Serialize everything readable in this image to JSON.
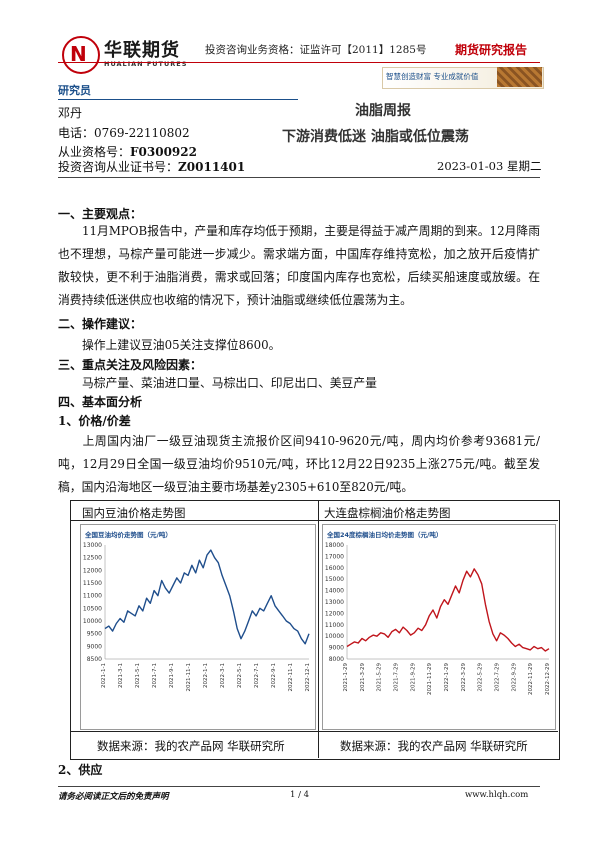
{
  "header": {
    "logo_cn": "华联期货",
    "logo_en": "HUALIAN FUTURES",
    "license": "投资咨询业务资格：证监许可【2011】1285号",
    "report_type": "期货研究报告",
    "banner": "智慧创造财富 专业成就价值"
  },
  "researcher": {
    "role": "研究员",
    "name": "邓丹",
    "phone": "电话：0769-22110802",
    "qual_label": "从业资格号：",
    "qual_no": "F0300922",
    "invest_label": "投资咨询从业证书号：",
    "invest_no": "Z0011401"
  },
  "report": {
    "title": "油脂周报",
    "subtitle": "下游消费低迷 油脂或低位震荡",
    "date": "2023-01-03 星期二"
  },
  "sections": {
    "s1_heading": "一、主要观点：",
    "s1_body": "11月MPOB报告中，产量和库存均低于预期，主要是得益于减产周期的到来。12月降雨也不理想，马棕产量可能进一步减少。需求端方面，中国库存维持宽松，加之放开后疫情扩散较快，更不利于油脂消费，需求或回落；印度国内库存也宽松，后续买船速度或放缓。在消费持续低迷供应也收缩的情况下，预计油脂或继续低位震荡为主。",
    "s2_heading": "二、操作建议：",
    "s2_body": "操作上建议豆油05关注支撑位8600。",
    "s3_heading": "三、重点关注及风险因素：",
    "s3_body": "马棕产量、菜油进口量、马棕出口、印尼出口、美豆产量",
    "s4_heading": "四、基本面分析",
    "s4_sub1": "1、价格/价差",
    "s4_body": "上周国内油厂一级豆油现货主流报价区间9410-9620元/吨，周内均价参考93681元/吨，12月29日全国一级豆油均价9510元/吨，环比12月22日9235上涨275元/吨。截至发稿，国内沿海地区一级豆油主要市场基差y2305+610至820元/吨。",
    "s4_sub2": "2、供应"
  },
  "figures": {
    "left_caption": "国内豆油价格走势图",
    "right_caption": "大连盘棕榈油价格走势图",
    "left_source": "数据来源：我的农产品网  华联研究所",
    "right_source": "数据来源：我的农产品网  华联研究所"
  },
  "chart_data": [
    {
      "type": "line",
      "title": "全国豆油均价走势图（元/吨）",
      "color": "#1f4e8c",
      "ylim": [
        8500,
        13000
      ],
      "yticks": [
        "13000",
        "12500",
        "12000",
        "11500",
        "11000",
        "10500",
        "10000",
        "9500",
        "9000",
        "8500"
      ],
      "xticks": [
        "2021-1-1",
        "2021-3-1",
        "2021-5-1",
        "2021-7-1",
        "2021-9-1",
        "2021-11-1",
        "2022-1-1",
        "2022-3-1",
        "2022-5-1",
        "2022-7-1",
        "2022-9-1",
        "2022-11-1",
        "2022-12-1"
      ],
      "values": [
        9700,
        9800,
        9600,
        9900,
        10100,
        9950,
        10400,
        10300,
        10200,
        10600,
        10400,
        10900,
        10700,
        11200,
        11000,
        11600,
        11300,
        11100,
        11400,
        11700,
        11500,
        11900,
        11800,
        12200,
        11900,
        12400,
        12100,
        12600,
        12800,
        12500,
        12300,
        11800,
        11400,
        11000,
        10400,
        9700,
        9300,
        9600,
        10000,
        10400,
        10200,
        10500,
        10400,
        10700,
        11000,
        10600,
        10400,
        10200,
        10000,
        9900,
        9700,
        9600,
        9300,
        9100,
        9500
      ]
    },
    {
      "type": "line",
      "title": "全国24度棕榈油日均价走势图（元/吨）",
      "color": "#c0151c",
      "ylim": [
        8000,
        18000
      ],
      "yticks": [
        "18000",
        "17000",
        "16000",
        "15000",
        "14000",
        "13000",
        "12000",
        "11000",
        "10000",
        "9000",
        "8000"
      ],
      "xticks": [
        "2021-1-29",
        "2021-3-29",
        "2021-5-29",
        "2021-7-29",
        "2021-9-29",
        "2021-11-29",
        "2022-1-29",
        "2022-3-29",
        "2022-5-29",
        "2022-7-29",
        "2022-9-29",
        "2022-11-29",
        "2022-12-29"
      ],
      "values": [
        9100,
        9300,
        9500,
        9400,
        9800,
        9600,
        9900,
        10100,
        10000,
        10300,
        10200,
        9900,
        10400,
        10600,
        10300,
        10800,
        10500,
        10100,
        10300,
        10700,
        10500,
        11000,
        11800,
        12300,
        11600,
        12600,
        13200,
        12800,
        13600,
        14400,
        13800,
        14900,
        15700,
        15200,
        15900,
        15400,
        14600,
        12800,
        11300,
        10200,
        9600,
        10300,
        10100,
        9800,
        9400,
        9100,
        9300,
        9000,
        8900,
        8800,
        9100,
        8900,
        9000,
        8700,
        8900
      ]
    }
  ],
  "footer": {
    "disclaimer": "请务必阅读正文后的免责声明",
    "page": "1 / 4",
    "url": "www.hlqh.com"
  }
}
